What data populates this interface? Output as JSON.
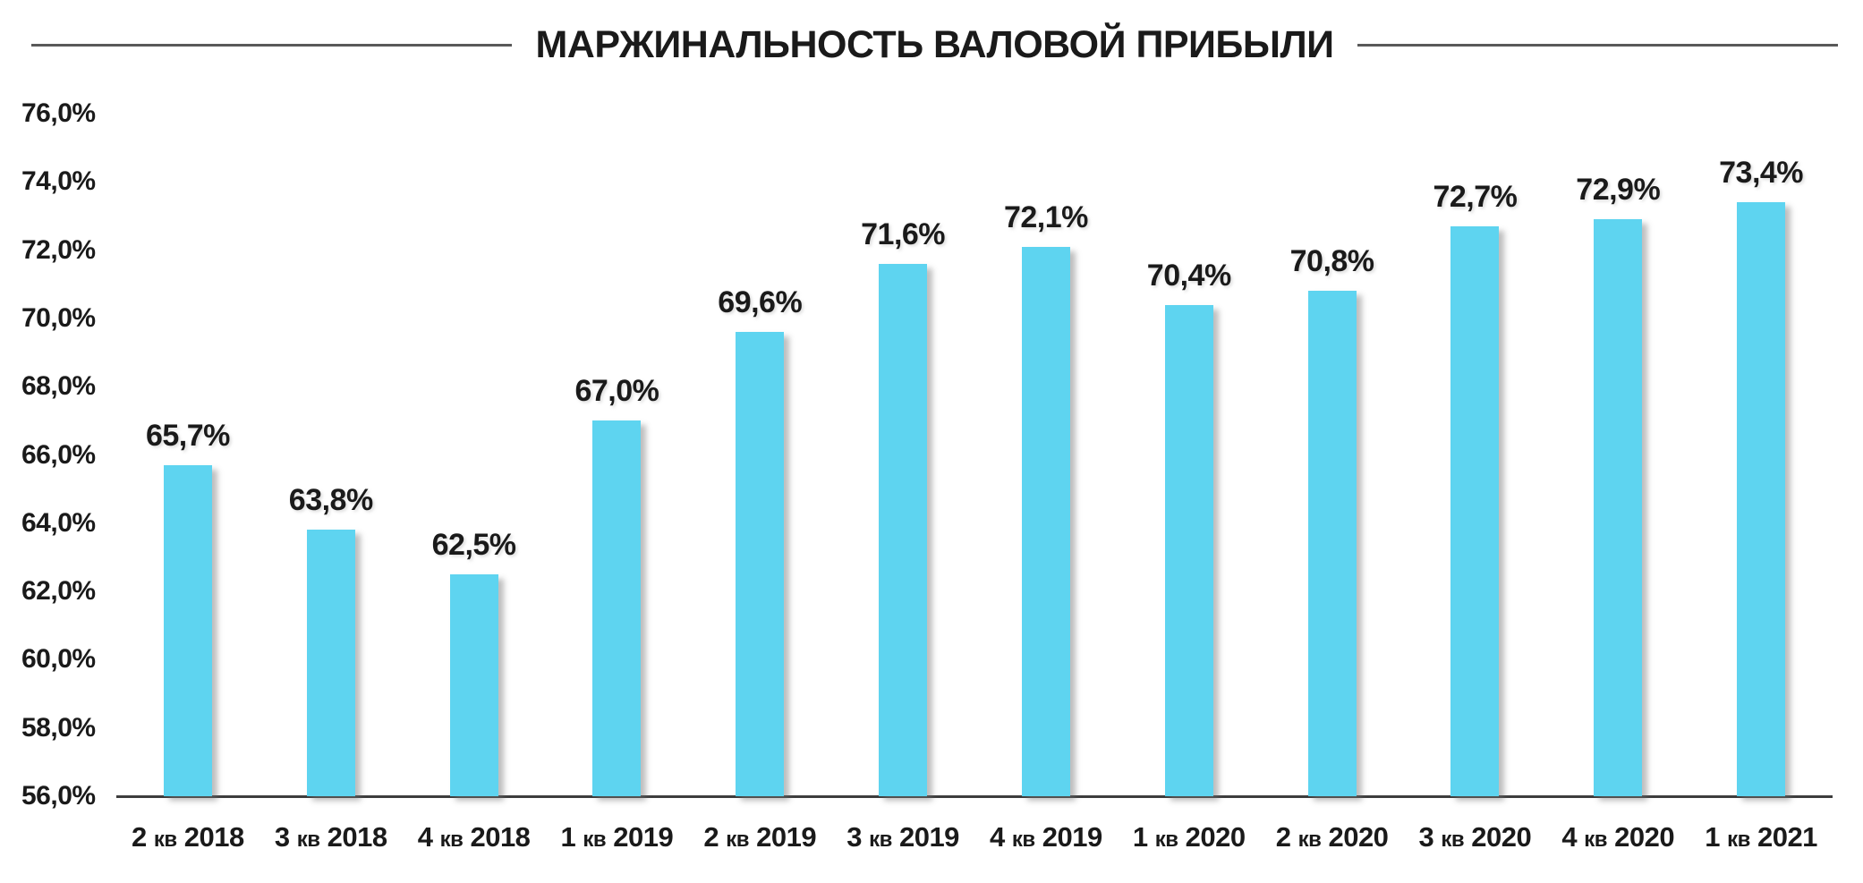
{
  "chart_data": {
    "type": "bar",
    "title": "МАРЖИНАЛЬНОСТЬ ВАЛОВОЙ ПРИБЫЛИ",
    "categories": [
      "2 кв 2018",
      "3 кв 2018",
      "4 кв 2018",
      "1 кв 2019",
      "2 кв 2019",
      "3 кв 2019",
      "4 кв 2019",
      "1 кв 2020",
      "2 кв 2020",
      "3 кв 2020",
      "4 кв 2020",
      "1 кв 2021"
    ],
    "values": [
      65.7,
      63.8,
      62.5,
      67.0,
      69.6,
      71.6,
      72.1,
      70.4,
      70.8,
      72.7,
      72.9,
      73.4
    ],
    "value_labels": [
      "65,7%",
      "63,8%",
      "62,5%",
      "67,0%",
      "69,6%",
      "71,6%",
      "72,1%",
      "70,4%",
      "70,8%",
      "72,7%",
      "72,9%",
      "73,4%"
    ],
    "y_ticks": [
      "76,0%",
      "74,0%",
      "72,0%",
      "70,0%",
      "68,0%",
      "66,0%",
      "64,0%",
      "62,0%",
      "60,0%",
      "58,0%",
      "56,0%"
    ],
    "ylim": [
      56,
      76
    ],
    "xlabel": "",
    "ylabel": "",
    "grid": false,
    "legend": null,
    "colors": {
      "bar": "#5ED4F0",
      "axis": "#3D3D3D",
      "text": "#1A1A1A",
      "title_rule": "#595959",
      "background": "#FFFFFF"
    }
  }
}
